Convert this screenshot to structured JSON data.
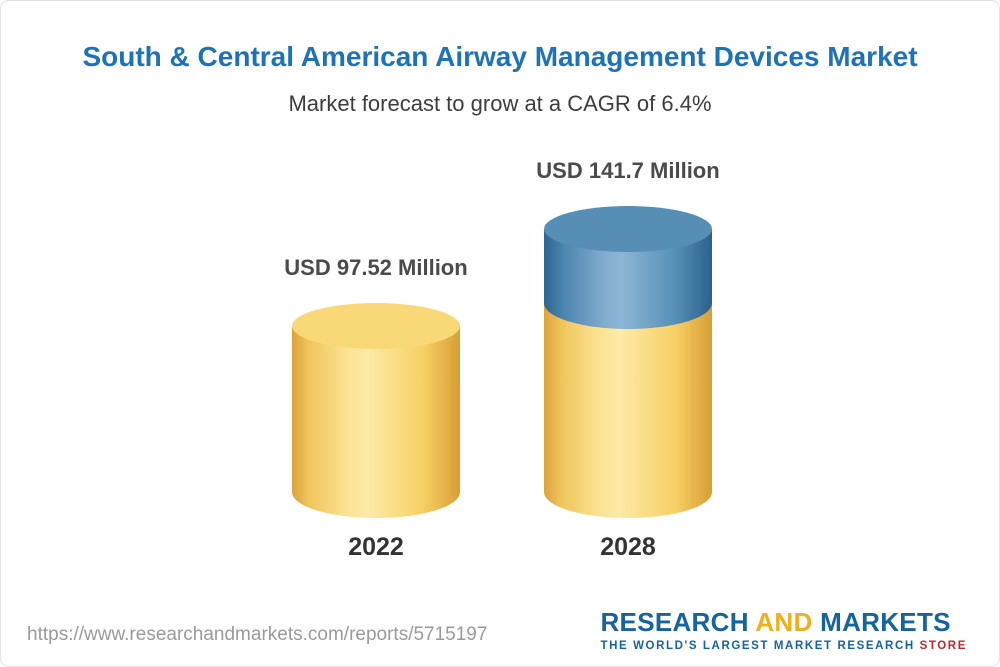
{
  "chart_data": {
    "type": "bar",
    "title": "South & Central American Airway Management Devices Market",
    "subtitle": "Market forecast to grow at a CAGR of 6.4%",
    "categories": [
      "2022",
      "2028"
    ],
    "values": [
      97.52,
      141.7
    ],
    "value_labels": [
      "USD 97.52 Million",
      "USD 141.7 Million"
    ],
    "unit": "USD Million",
    "cagr": "6.4%",
    "legend": "none",
    "grid": false,
    "colors": {
      "base_segment": "#f6d169",
      "growth_segment": "#4d86af"
    }
  },
  "footer": {
    "url": "https://www.researchandmarkets.com/reports/5715197",
    "logo": {
      "word1": "RESEARCH",
      "word2": "AND",
      "word3": "MARKETS",
      "tagline": "THE WORLD'S LARGEST MARKET RESEARCH ",
      "tagline_accent": "STORE"
    }
  }
}
